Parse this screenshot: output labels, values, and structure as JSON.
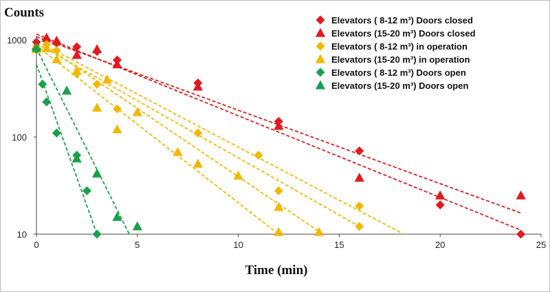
{
  "chart_data": {
    "type": "scatter",
    "ylabel": "Counts",
    "xlabel": "Time (min)",
    "xlim": [
      0,
      25
    ],
    "ylim": [
      10,
      1000
    ],
    "y_scale": "log",
    "x_ticks": [
      "0",
      "5",
      "10",
      "15",
      "20",
      "25"
    ],
    "y_ticks": [
      "10",
      "100",
      "1000"
    ],
    "legend_position": "top-right",
    "series": [
      {
        "name": "Elevators ( 8-12 m³) Doors closed",
        "marker": "diamond",
        "color": "#e31a1c",
        "points": [
          [
            0,
            950
          ],
          [
            0.5,
            1000
          ],
          [
            1,
            930
          ],
          [
            2,
            850
          ],
          [
            3,
            760
          ],
          [
            4,
            620
          ],
          [
            8,
            360
          ],
          [
            12,
            145
          ],
          [
            16,
            72
          ],
          [
            20,
            20
          ],
          [
            24,
            10
          ]
        ],
        "fit": [
          [
            0,
            1080
          ],
          [
            24,
            16.5
          ]
        ]
      },
      {
        "name": "Elevators (15-20 m³) Doors closed",
        "marker": "triangle",
        "color": "#e31a1c",
        "points": [
          [
            0,
            880
          ],
          [
            0.5,
            1050
          ],
          [
            1,
            980
          ],
          [
            2,
            700
          ],
          [
            3,
            800
          ],
          [
            4,
            560
          ],
          [
            8,
            330
          ],
          [
            12,
            130
          ],
          [
            16,
            38
          ],
          [
            20,
            25
          ],
          [
            24,
            25
          ]
        ],
        "fit": [
          [
            0,
            1150
          ],
          [
            24,
            11
          ]
        ]
      },
      {
        "name": "Elevators ( 8-12 m³) in operation",
        "marker": "diamond",
        "color": "#f2b800",
        "points": [
          [
            0,
            830
          ],
          [
            0.5,
            900
          ],
          [
            1,
            780
          ],
          [
            2,
            450
          ],
          [
            3,
            350
          ],
          [
            4,
            195
          ],
          [
            8,
            110
          ],
          [
            11,
            65
          ],
          [
            12,
            28
          ],
          [
            16,
            19.5
          ],
          [
            16,
            12
          ]
        ],
        "fit_lines": [
          [
            [
              0,
              920
            ],
            [
              16,
              12
            ]
          ],
          [
            [
              0.5,
              860
            ],
            [
              18.2,
              10
            ]
          ]
        ]
      },
      {
        "name": "Elevators (15-20 m³) in operation",
        "marker": "triangle",
        "color": "#f2b800",
        "points": [
          [
            0,
            800
          ],
          [
            0.5,
            820
          ],
          [
            1,
            630
          ],
          [
            2,
            480
          ],
          [
            3,
            200
          ],
          [
            3.5,
            390
          ],
          [
            4,
            120
          ],
          [
            5,
            180
          ],
          [
            7,
            70
          ],
          [
            8,
            53
          ],
          [
            10,
            40
          ],
          [
            12,
            19
          ],
          [
            12,
            10.5
          ],
          [
            14,
            10.5
          ]
        ],
        "fit_lines": [
          [
            [
              0,
              870
            ],
            [
              12,
              10
            ]
          ],
          [
            [
              0.5,
              850
            ],
            [
              14.2,
              10
            ]
          ]
        ]
      },
      {
        "name": "Elevators ( 8-12 m³) Doors open",
        "marker": "diamond",
        "color": "#1aa04a",
        "points": [
          [
            0,
            800
          ],
          [
            0.3,
            350
          ],
          [
            0.5,
            230
          ],
          [
            1,
            110
          ],
          [
            2,
            65
          ],
          [
            2.5,
            28
          ],
          [
            3,
            10
          ]
        ],
        "fit": [
          [
            0,
            560
          ],
          [
            3,
            10
          ]
        ]
      },
      {
        "name": "Elevators (15-20 m³) Doors open",
        "marker": "triangle",
        "color": "#1aa04a",
        "points": [
          [
            0,
            830
          ],
          [
            1.5,
            300
          ],
          [
            2,
            60
          ],
          [
            3,
            42
          ],
          [
            4,
            15
          ],
          [
            5,
            12
          ]
        ],
        "fit": [
          [
            0,
            820
          ],
          [
            4.6,
            10
          ]
        ]
      }
    ]
  }
}
